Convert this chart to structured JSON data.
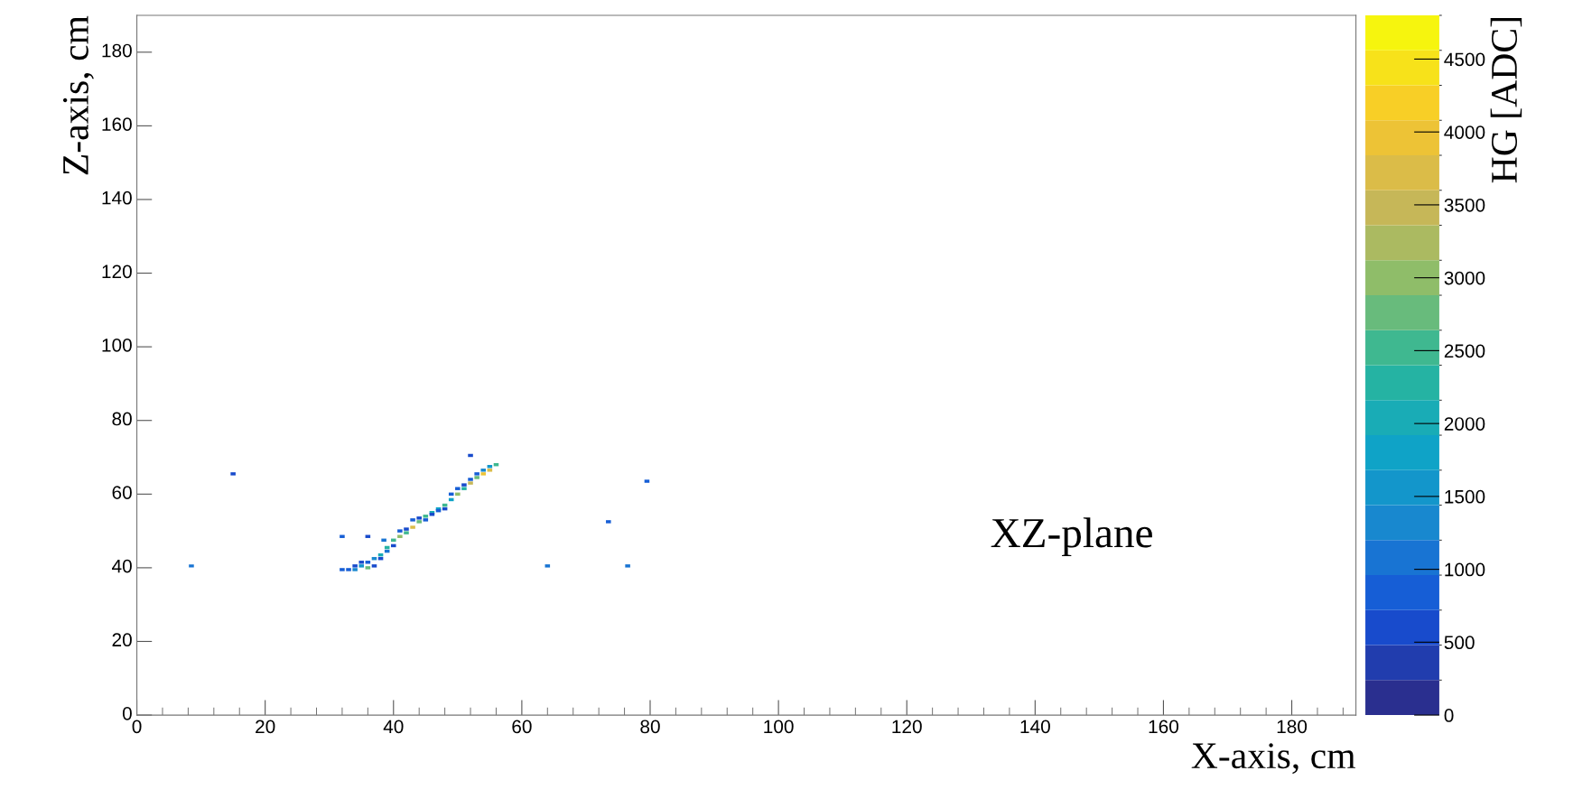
{
  "chart_data": {
    "type": "scatter",
    "xlabel": "X-axis, cm",
    "ylabel": "Z-axis, cm",
    "clabel": "HG [ADC]",
    "xlim": [
      0,
      190
    ],
    "ylim": [
      0,
      190
    ],
    "xticks": [
      0,
      20,
      40,
      60,
      80,
      100,
      120,
      140,
      160,
      180
    ],
    "yticks": [
      0,
      20,
      40,
      60,
      80,
      100,
      120,
      140,
      160,
      180
    ],
    "clim": [
      0,
      4800
    ],
    "cticks": [
      0,
      500,
      1000,
      1500,
      2000,
      2500,
      3000,
      3500,
      4000,
      4500
    ],
    "marker": "square",
    "grid": false,
    "annotations": [
      "XZ-plane"
    ],
    "series": [
      {
        "type": "scatter",
        "x": [
          8.5,
          15,
          32,
          36,
          38.5,
          52,
          64,
          73.5,
          76.5,
          79.5,
          32,
          33,
          34,
          34,
          35,
          35,
          36,
          36,
          37,
          37,
          38,
          38,
          39,
          39,
          40,
          40,
          41,
          41,
          42,
          42,
          43,
          43,
          44,
          44,
          45,
          45,
          46,
          46,
          47,
          47,
          48,
          48,
          49,
          49,
          50,
          50,
          51,
          51,
          52,
          52,
          53,
          53,
          54,
          54,
          55,
          55,
          56
        ],
        "values": [
          40.5,
          65.5,
          48.5,
          48.5,
          47.5,
          70.5,
          40.5,
          52.5,
          40.5,
          63.5,
          39.5,
          39.5,
          39.5,
          40.5,
          40.5,
          41.5,
          40,
          41.5,
          40.5,
          42.5,
          43.5,
          42.5,
          44.5,
          45.5,
          46,
          47.5,
          48.5,
          50,
          49.5,
          50.5,
          51,
          53,
          52.5,
          53.5,
          54,
          53,
          55,
          54.5,
          56,
          55.5,
          57,
          56,
          58.5,
          60,
          60,
          61.5,
          61.5,
          62.5,
          63,
          64,
          64.5,
          65.5,
          65.5,
          66.5,
          66.5,
          67.5,
          68
        ],
        "cvalues": [
          1000,
          600,
          800,
          700,
          1100,
          700,
          1000,
          900,
          1000,
          800,
          900,
          900,
          1200,
          700,
          1500,
          600,
          2800,
          800,
          700,
          1300,
          2000,
          700,
          1000,
          2200,
          700,
          2600,
          3000,
          900,
          2500,
          600,
          3800,
          800,
          2800,
          700,
          2500,
          900,
          2000,
          700,
          1800,
          900,
          2600,
          600,
          1700,
          800,
          3000,
          900,
          2200,
          700,
          3500,
          900,
          2800,
          800,
          4000,
          1200,
          3800,
          1600,
          2600
        ]
      }
    ]
  }
}
